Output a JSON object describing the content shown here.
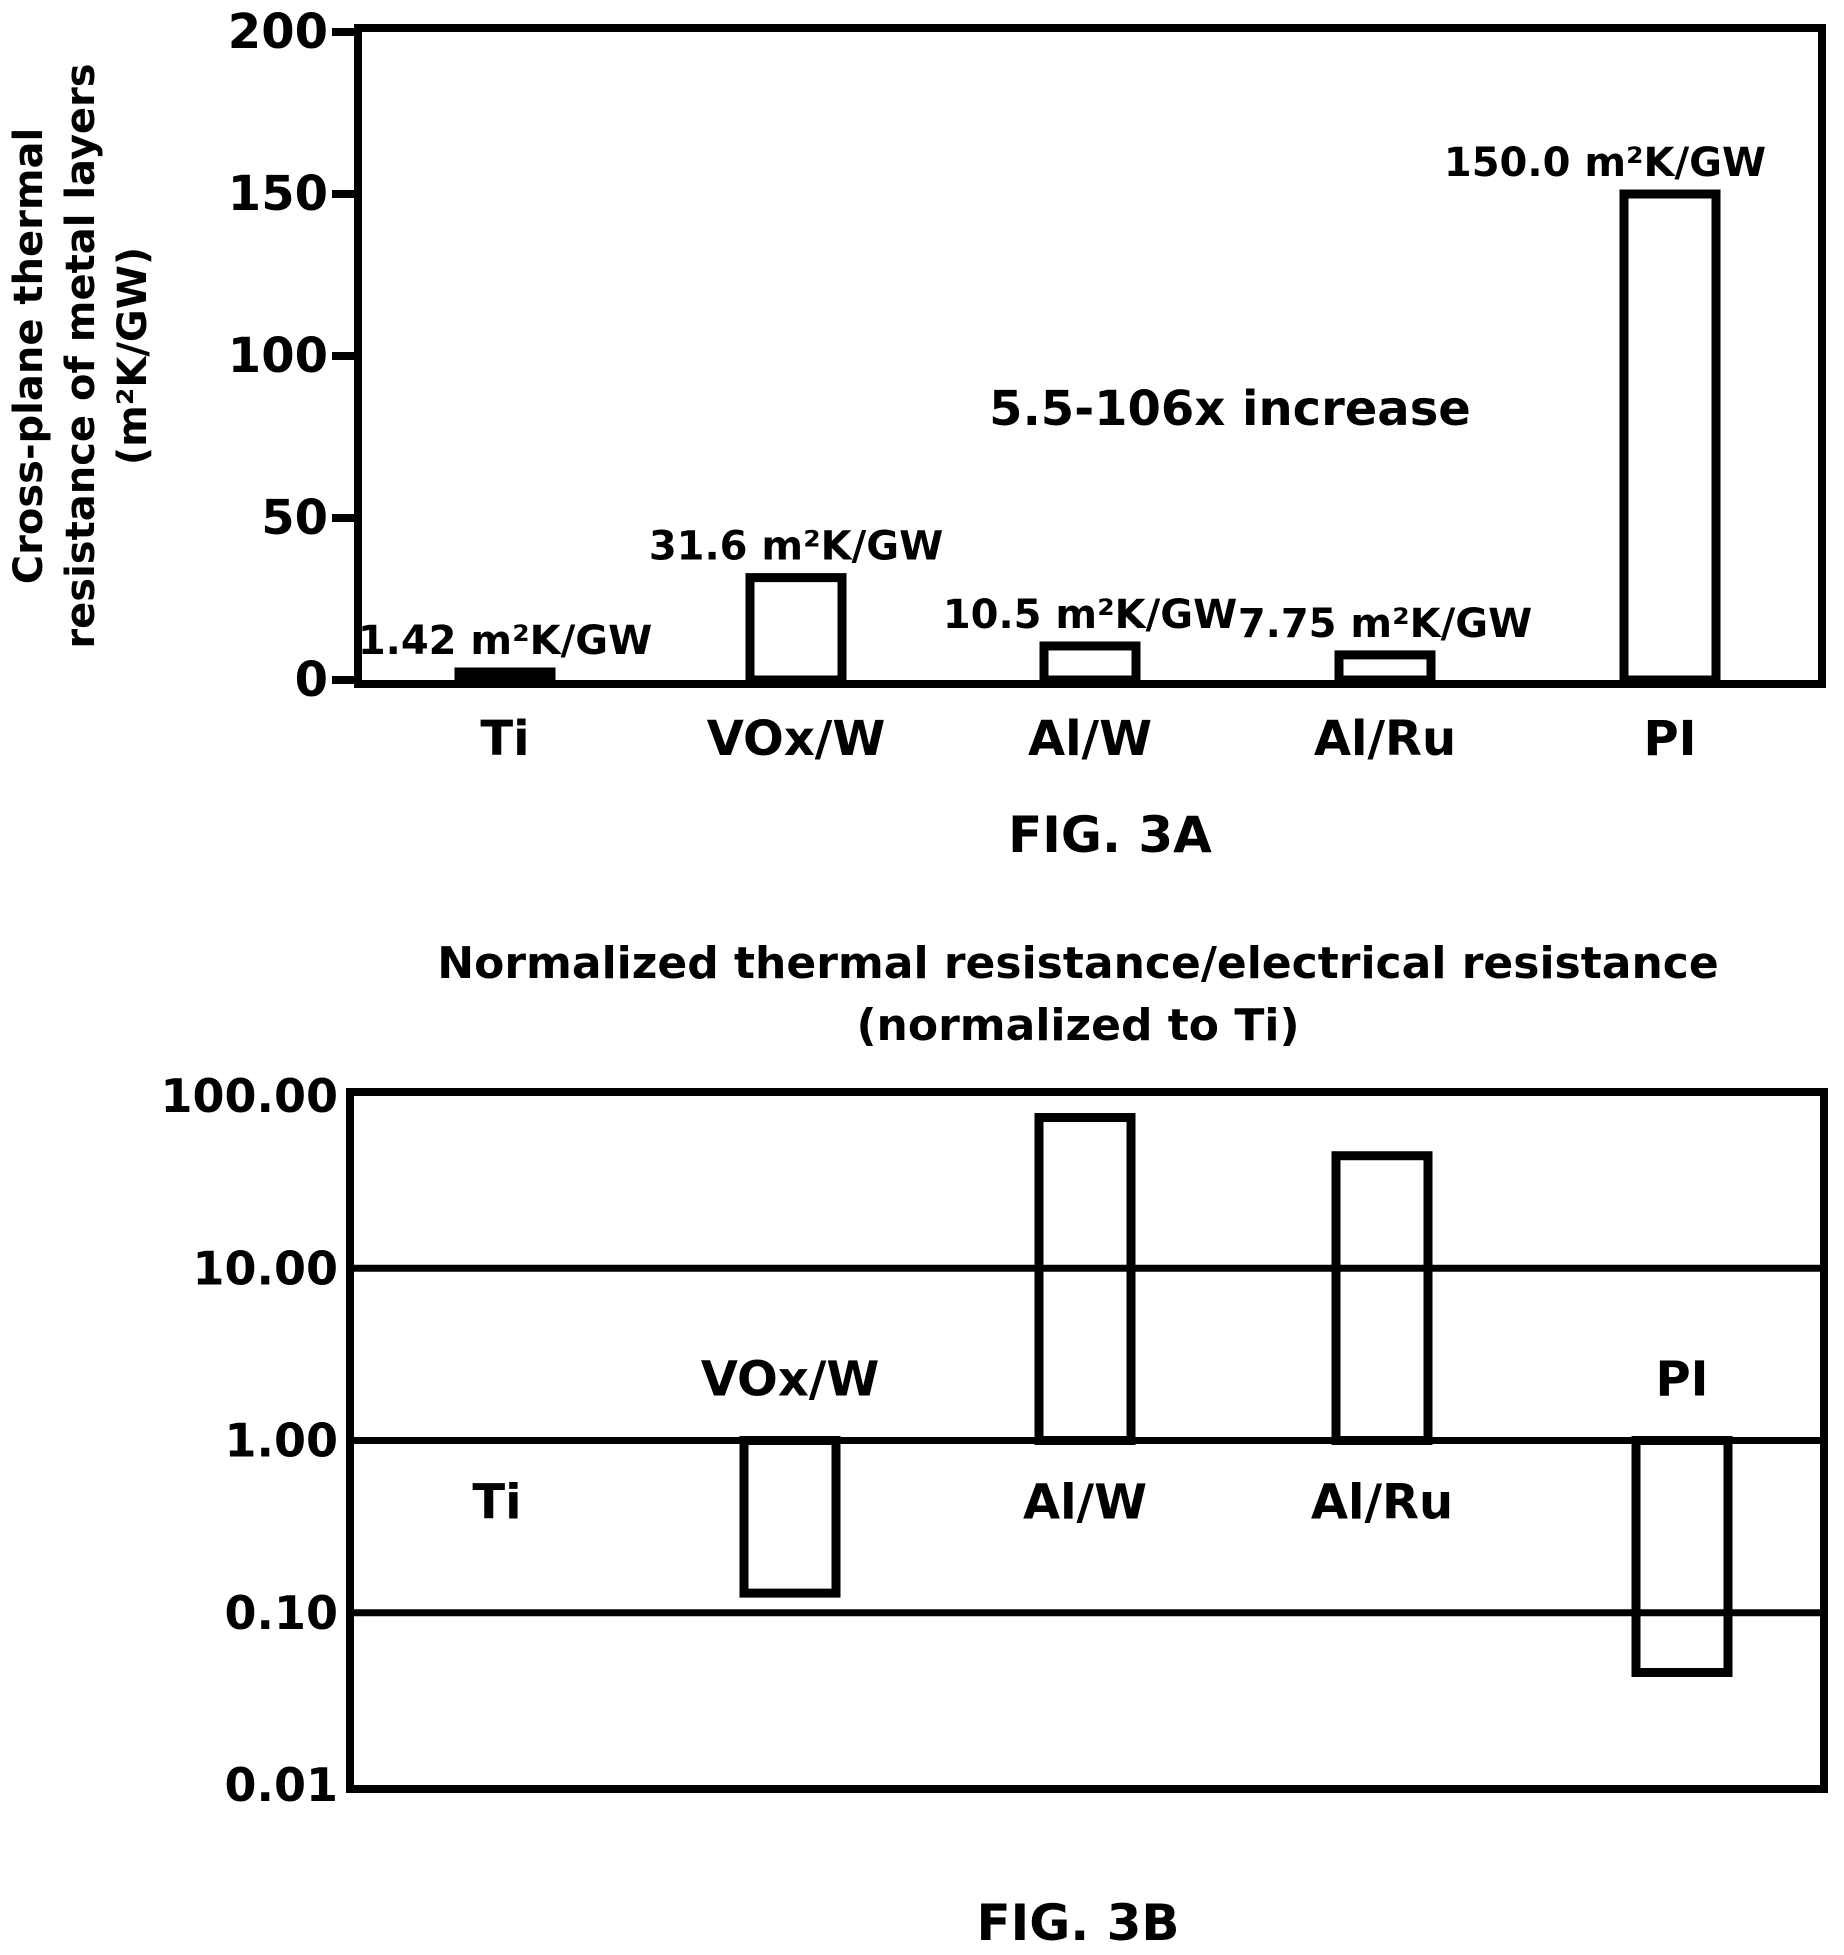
{
  "chart_data": [
    {
      "type": "bar",
      "categories": [
        "Ti",
        "VOx/W",
        "Al/W",
        "Al/Ru",
        "PI"
      ],
      "values": [
        1.42,
        31.6,
        10.5,
        7.75,
        150.0
      ],
      "data_labels": [
        "1.42 m²K/GW",
        "31.6 m²K/GW",
        "10.5 m²K/GW",
        "7.75 m²K/GW",
        "150.0 m²K/GW"
      ],
      "ylabel": [
        "Cross-plane thermal",
        "resistance of metal layers",
        "(m²K/GW)"
      ],
      "ylim": [
        0,
        200
      ],
      "yticks": [
        "0",
        "50",
        "100",
        "150",
        "200"
      ],
      "annotation": "5.5-106x increase",
      "caption": "FIG. 3A",
      "grid": false
    },
    {
      "type": "bar",
      "scale": "log",
      "baseline": 1,
      "title": [
        "Normalized thermal resistance/electrical resistance",
        "(normalized to Ti)"
      ],
      "categories": [
        "Ti",
        "VOx/W",
        "Al/W",
        "Al/Ru",
        "PI"
      ],
      "values": [
        1.0,
        0.13,
        75,
        45,
        0.045
      ],
      "ylim": [
        0.01,
        100
      ],
      "yticks": [
        "0.01",
        "0.10",
        "1.00",
        "10.00",
        "100.00"
      ],
      "caption": "FIG. 3B",
      "grid": true
    }
  ]
}
